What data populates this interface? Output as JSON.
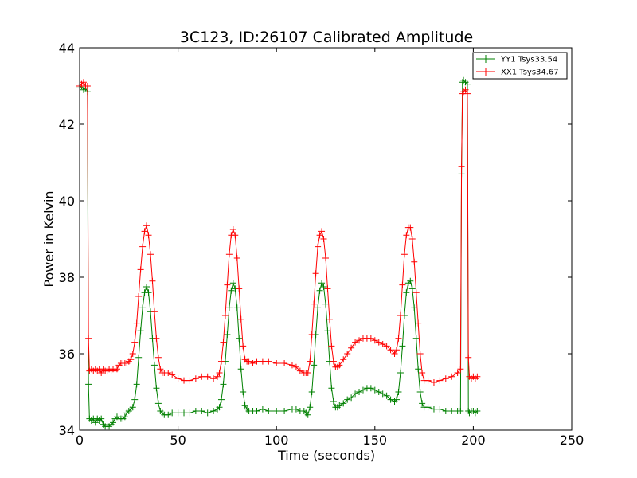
{
  "chart_data": {
    "type": "line",
    "title": "3C123, ID:26107 Calibrated Amplitude",
    "xlabel": "Time (seconds)",
    "ylabel": "Power in Kelvin",
    "xlim": [
      0,
      250
    ],
    "ylim": [
      34,
      44
    ],
    "xticks": [
      "0",
      "50",
      "100",
      "150",
      "200",
      "250"
    ],
    "yticks": [
      "34",
      "36",
      "38",
      "40",
      "42",
      "44"
    ],
    "grid": false,
    "legend_position": "top-right",
    "series": [
      {
        "name": "YY1 Tsys33.54",
        "color": "#008000",
        "marker": "plus",
        "points": [
          [
            0,
            42.95
          ],
          [
            1,
            43.0
          ],
          [
            2,
            42.9
          ],
          [
            3,
            42.95
          ],
          [
            4,
            42.85
          ],
          [
            4.5,
            35.2
          ],
          [
            5,
            34.3
          ],
          [
            6,
            34.25
          ],
          [
            7,
            34.3
          ],
          [
            8,
            34.2
          ],
          [
            9,
            34.3
          ],
          [
            10,
            34.25
          ],
          [
            11,
            34.3
          ],
          [
            12,
            34.15
          ],
          [
            13,
            34.1
          ],
          [
            14,
            34.1
          ],
          [
            15,
            34.1
          ],
          [
            16,
            34.15
          ],
          [
            17,
            34.2
          ],
          [
            18,
            34.3
          ],
          [
            19,
            34.35
          ],
          [
            20,
            34.3
          ],
          [
            21,
            34.3
          ],
          [
            22,
            34.3
          ],
          [
            23,
            34.35
          ],
          [
            24,
            34.45
          ],
          [
            25,
            34.5
          ],
          [
            26,
            34.55
          ],
          [
            27,
            34.6
          ],
          [
            28,
            34.8
          ],
          [
            29,
            35.2
          ],
          [
            30,
            35.9
          ],
          [
            31,
            36.6
          ],
          [
            32,
            37.2
          ],
          [
            33,
            37.6
          ],
          [
            34,
            37.75
          ],
          [
            35,
            37.6
          ],
          [
            36,
            37.1
          ],
          [
            37,
            36.4
          ],
          [
            38,
            35.7
          ],
          [
            39,
            35.1
          ],
          [
            40,
            34.7
          ],
          [
            41,
            34.5
          ],
          [
            42,
            34.45
          ],
          [
            43,
            34.4
          ],
          [
            45,
            34.4
          ],
          [
            47,
            34.45
          ],
          [
            50,
            34.45
          ],
          [
            53,
            34.45
          ],
          [
            56,
            34.45
          ],
          [
            59,
            34.5
          ],
          [
            62,
            34.5
          ],
          [
            65,
            34.45
          ],
          [
            68,
            34.5
          ],
          [
            70,
            34.55
          ],
          [
            71,
            34.6
          ],
          [
            72,
            34.8
          ],
          [
            73,
            35.2
          ],
          [
            74,
            35.8
          ],
          [
            75,
            36.5
          ],
          [
            76,
            37.2
          ],
          [
            77,
            37.65
          ],
          [
            78,
            37.85
          ],
          [
            79,
            37.7
          ],
          [
            80,
            37.2
          ],
          [
            81,
            36.4
          ],
          [
            82,
            35.6
          ],
          [
            83,
            35.0
          ],
          [
            84,
            34.65
          ],
          [
            85,
            34.55
          ],
          [
            86,
            34.5
          ],
          [
            88,
            34.5
          ],
          [
            90,
            34.5
          ],
          [
            93,
            34.55
          ],
          [
            96,
            34.5
          ],
          [
            100,
            34.5
          ],
          [
            104,
            34.5
          ],
          [
            108,
            34.55
          ],
          [
            110,
            34.55
          ],
          [
            112,
            34.5
          ],
          [
            114,
            34.5
          ],
          [
            115,
            34.45
          ],
          [
            116,
            34.4
          ],
          [
            117,
            34.6
          ],
          [
            118,
            35.0
          ],
          [
            119,
            35.7
          ],
          [
            120,
            36.5
          ],
          [
            121,
            37.2
          ],
          [
            122,
            37.65
          ],
          [
            123,
            37.85
          ],
          [
            124,
            37.75
          ],
          [
            125,
            37.3
          ],
          [
            126,
            36.6
          ],
          [
            127,
            35.8
          ],
          [
            128,
            35.1
          ],
          [
            129,
            34.75
          ],
          [
            130,
            34.6
          ],
          [
            131,
            34.6
          ],
          [
            132,
            34.65
          ],
          [
            134,
            34.7
          ],
          [
            136,
            34.8
          ],
          [
            138,
            34.85
          ],
          [
            140,
            34.95
          ],
          [
            142,
            35.0
          ],
          [
            144,
            35.05
          ],
          [
            146,
            35.1
          ],
          [
            148,
            35.1
          ],
          [
            150,
            35.05
          ],
          [
            152,
            35.0
          ],
          [
            154,
            34.95
          ],
          [
            156,
            34.9
          ],
          [
            158,
            34.8
          ],
          [
            160,
            34.75
          ],
          [
            161,
            34.8
          ],
          [
            162,
            35.0
          ],
          [
            163,
            35.5
          ],
          [
            164,
            36.2
          ],
          [
            165,
            37.0
          ],
          [
            166,
            37.6
          ],
          [
            167,
            37.85
          ],
          [
            168,
            37.9
          ],
          [
            169,
            37.7
          ],
          [
            170,
            37.2
          ],
          [
            171,
            36.4
          ],
          [
            172,
            35.6
          ],
          [
            173,
            35.0
          ],
          [
            174,
            34.7
          ],
          [
            175,
            34.6
          ],
          [
            177,
            34.6
          ],
          [
            180,
            34.55
          ],
          [
            183,
            34.55
          ],
          [
            186,
            34.5
          ],
          [
            189,
            34.5
          ],
          [
            192,
            34.5
          ],
          [
            193.5,
            34.5
          ],
          [
            194,
            40.7
          ],
          [
            194.5,
            43.1
          ],
          [
            195,
            43.15
          ],
          [
            196,
            43.1
          ],
          [
            197,
            43.05
          ],
          [
            197.5,
            34.5
          ],
          [
            198,
            34.45
          ],
          [
            199,
            34.5
          ],
          [
            200,
            34.5
          ],
          [
            201,
            34.45
          ],
          [
            202,
            34.5
          ]
        ]
      },
      {
        "name": "XX1 Tsys34.67",
        "color": "#ff0000",
        "marker": "plus",
        "points": [
          [
            0,
            43.0
          ],
          [
            1,
            43.05
          ],
          [
            2,
            43.1
          ],
          [
            3,
            43.0
          ],
          [
            4,
            43.0
          ],
          [
            4.5,
            36.4
          ],
          [
            5,
            35.55
          ],
          [
            6,
            35.6
          ],
          [
            7,
            35.55
          ],
          [
            8,
            35.6
          ],
          [
            9,
            35.55
          ],
          [
            10,
            35.6
          ],
          [
            11,
            35.5
          ],
          [
            12,
            35.6
          ],
          [
            13,
            35.55
          ],
          [
            14,
            35.55
          ],
          [
            15,
            35.6
          ],
          [
            16,
            35.55
          ],
          [
            17,
            35.6
          ],
          [
            18,
            35.55
          ],
          [
            19,
            35.6
          ],
          [
            20,
            35.7
          ],
          [
            21,
            35.75
          ],
          [
            22,
            35.75
          ],
          [
            23,
            35.75
          ],
          [
            24,
            35.75
          ],
          [
            25,
            35.8
          ],
          [
            26,
            35.85
          ],
          [
            27,
            36.0
          ],
          [
            28,
            36.3
          ],
          [
            29,
            36.8
          ],
          [
            30,
            37.5
          ],
          [
            31,
            38.2
          ],
          [
            32,
            38.8
          ],
          [
            33,
            39.2
          ],
          [
            34,
            39.35
          ],
          [
            35,
            39.1
          ],
          [
            36,
            38.6
          ],
          [
            37,
            37.9
          ],
          [
            38,
            37.1
          ],
          [
            39,
            36.4
          ],
          [
            40,
            35.9
          ],
          [
            41,
            35.6
          ],
          [
            42,
            35.5
          ],
          [
            43,
            35.5
          ],
          [
            45,
            35.5
          ],
          [
            47,
            35.45
          ],
          [
            50,
            35.35
          ],
          [
            53,
            35.3
          ],
          [
            56,
            35.3
          ],
          [
            59,
            35.35
          ],
          [
            62,
            35.4
          ],
          [
            65,
            35.4
          ],
          [
            68,
            35.35
          ],
          [
            70,
            35.4
          ],
          [
            71,
            35.5
          ],
          [
            72,
            35.8
          ],
          [
            73,
            36.3
          ],
          [
            74,
            37.0
          ],
          [
            75,
            37.8
          ],
          [
            76,
            38.6
          ],
          [
            77,
            39.1
          ],
          [
            78,
            39.25
          ],
          [
            79,
            39.1
          ],
          [
            80,
            38.5
          ],
          [
            81,
            37.7
          ],
          [
            82,
            36.9
          ],
          [
            83,
            36.2
          ],
          [
            84,
            35.85
          ],
          [
            85,
            35.8
          ],
          [
            86,
            35.8
          ],
          [
            88,
            35.75
          ],
          [
            90,
            35.8
          ],
          [
            93,
            35.8
          ],
          [
            96,
            35.8
          ],
          [
            100,
            35.75
          ],
          [
            104,
            35.75
          ],
          [
            108,
            35.7
          ],
          [
            110,
            35.65
          ],
          [
            112,
            35.55
          ],
          [
            114,
            35.5
          ],
          [
            115,
            35.5
          ],
          [
            116,
            35.5
          ],
          [
            117,
            35.8
          ],
          [
            118,
            36.5
          ],
          [
            119,
            37.3
          ],
          [
            120,
            38.1
          ],
          [
            121,
            38.8
          ],
          [
            122,
            39.1
          ],
          [
            123,
            39.2
          ],
          [
            124,
            39.0
          ],
          [
            125,
            38.5
          ],
          [
            126,
            37.7
          ],
          [
            127,
            36.9
          ],
          [
            128,
            36.2
          ],
          [
            129,
            35.8
          ],
          [
            130,
            35.65
          ],
          [
            131,
            35.65
          ],
          [
            132,
            35.7
          ],
          [
            134,
            35.85
          ],
          [
            136,
            36.0
          ],
          [
            138,
            36.15
          ],
          [
            140,
            36.3
          ],
          [
            142,
            36.35
          ],
          [
            144,
            36.4
          ],
          [
            146,
            36.4
          ],
          [
            148,
            36.4
          ],
          [
            150,
            36.35
          ],
          [
            152,
            36.3
          ],
          [
            154,
            36.25
          ],
          [
            156,
            36.2
          ],
          [
            158,
            36.1
          ],
          [
            160,
            36.0
          ],
          [
            161,
            36.1
          ],
          [
            162,
            36.4
          ],
          [
            163,
            37.0
          ],
          [
            164,
            37.8
          ],
          [
            165,
            38.6
          ],
          [
            166,
            39.1
          ],
          [
            167,
            39.3
          ],
          [
            168,
            39.3
          ],
          [
            169,
            39.0
          ],
          [
            170,
            38.4
          ],
          [
            171,
            37.6
          ],
          [
            172,
            36.8
          ],
          [
            173,
            36.0
          ],
          [
            174,
            35.5
          ],
          [
            175,
            35.3
          ],
          [
            177,
            35.3
          ],
          [
            180,
            35.25
          ],
          [
            183,
            35.3
          ],
          [
            186,
            35.35
          ],
          [
            189,
            35.4
          ],
          [
            192,
            35.5
          ],
          [
            193.5,
            35.6
          ],
          [
            194,
            40.9
          ],
          [
            194.5,
            42.8
          ],
          [
            195,
            42.85
          ],
          [
            196,
            42.9
          ],
          [
            197,
            42.8
          ],
          [
            197.5,
            35.9
          ],
          [
            198,
            35.4
          ],
          [
            199,
            35.35
          ],
          [
            200,
            35.4
          ],
          [
            201,
            35.35
          ],
          [
            202,
            35.4
          ]
        ]
      }
    ]
  }
}
